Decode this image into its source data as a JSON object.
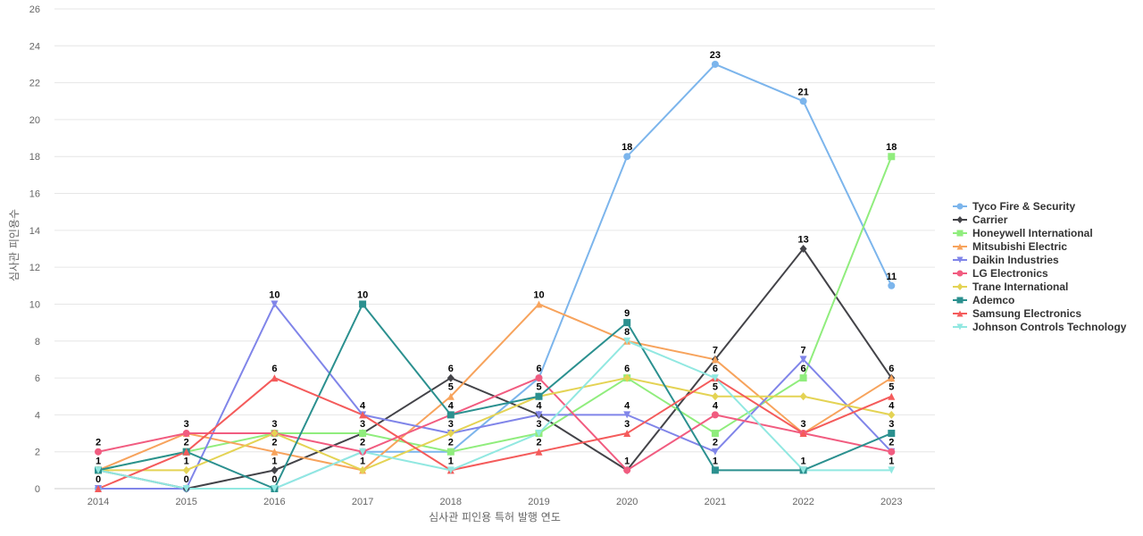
{
  "chart_data": {
    "type": "line",
    "title": "",
    "xlabel": "심사관 피인용 특허 발행 연도",
    "ylabel": "심사관 피인용수",
    "x": [
      "2014",
      "2015",
      "2016",
      "2017",
      "2018",
      "2019",
      "2020",
      "2021",
      "2022",
      "2023"
    ],
    "ylim": [
      0,
      26
    ],
    "yticks": [
      0,
      2,
      4,
      6,
      8,
      10,
      12,
      14,
      16,
      18,
      20,
      22,
      24,
      26
    ],
    "grid": true,
    "legend_position": "right",
    "series": [
      {
        "name": "Tyco Fire & Security",
        "color": "#7cb5ec",
        "marker": "circle",
        "values": [
          0,
          0,
          0,
          2,
          2,
          6,
          18,
          23,
          21,
          11
        ]
      },
      {
        "name": "Carrier",
        "color": "#434348",
        "marker": "diamond",
        "values": [
          1,
          0,
          1,
          3,
          6,
          4,
          1,
          7,
          13,
          6
        ]
      },
      {
        "name": "Honeywell International",
        "color": "#90ed7d",
        "marker": "square",
        "values": [
          1,
          2,
          3,
          3,
          2,
          3,
          6,
          3,
          6,
          18
        ]
      },
      {
        "name": "Mitsubishi Electric",
        "color": "#f7a35c",
        "marker": "triangle",
        "values": [
          1,
          3,
          2,
          1,
          5,
          10,
          8,
          7,
          3,
          6
        ]
      },
      {
        "name": "Daikin Industries",
        "color": "#8085e9",
        "marker": "triangle-down",
        "values": [
          0,
          0,
          10,
          4,
          3,
          4,
          4,
          2,
          7,
          2
        ]
      },
      {
        "name": "LG Electronics",
        "color": "#f15c80",
        "marker": "circle",
        "values": [
          2,
          3,
          3,
          2,
          4,
          6,
          1,
          4,
          3,
          2
        ]
      },
      {
        "name": "Trane International",
        "color": "#e4d354",
        "marker": "diamond",
        "values": [
          1,
          1,
          3,
          1,
          3,
          5,
          6,
          5,
          5,
          4
        ]
      },
      {
        "name": "Ademco",
        "color": "#2b908f",
        "marker": "square",
        "values": [
          1,
          2,
          0,
          10,
          4,
          5,
          9,
          1,
          1,
          3
        ]
      },
      {
        "name": "Samsung Electronics",
        "color": "#f45b5b",
        "marker": "triangle",
        "values": [
          0,
          2,
          6,
          4,
          1,
          2,
          3,
          6,
          3,
          5
        ]
      },
      {
        "name": "Johnson Controls Technology",
        "color": "#91e8e1",
        "marker": "triangle-down",
        "values": [
          1,
          0,
          0,
          2,
          1,
          3,
          8,
          6,
          1,
          1
        ]
      }
    ],
    "data_labels": [
      {
        "x": "2014",
        "labels": [
          "2",
          "1",
          "0"
        ]
      },
      {
        "x": "2015",
        "labels": [
          "3",
          "2",
          "1",
          "0"
        ]
      },
      {
        "x": "2016",
        "labels": [
          "10",
          "6",
          "3",
          "2",
          "1",
          "0"
        ]
      },
      {
        "x": "2017",
        "labels": [
          "10",
          "4",
          "3",
          "2",
          "1"
        ]
      },
      {
        "x": "2018",
        "labels": [
          "6",
          "5",
          "4",
          "3",
          "2",
          "1"
        ]
      },
      {
        "x": "2019",
        "labels": [
          "10",
          "6",
          "5",
          "4",
          "3",
          "2"
        ]
      },
      {
        "x": "2020",
        "labels": [
          "18",
          "9",
          "8",
          "6",
          "4",
          "3",
          "1"
        ]
      },
      {
        "x": "2021",
        "labels": [
          "23",
          "7",
          "6",
          "5",
          "4",
          "2",
          "1"
        ]
      },
      {
        "x": "2022",
        "labels": [
          "21",
          "13",
          "7",
          "6",
          "3",
          "1"
        ]
      },
      {
        "x": "2023",
        "labels": [
          "18",
          "11",
          "6",
          "5",
          "4",
          "3",
          "2",
          "1"
        ]
      }
    ]
  }
}
